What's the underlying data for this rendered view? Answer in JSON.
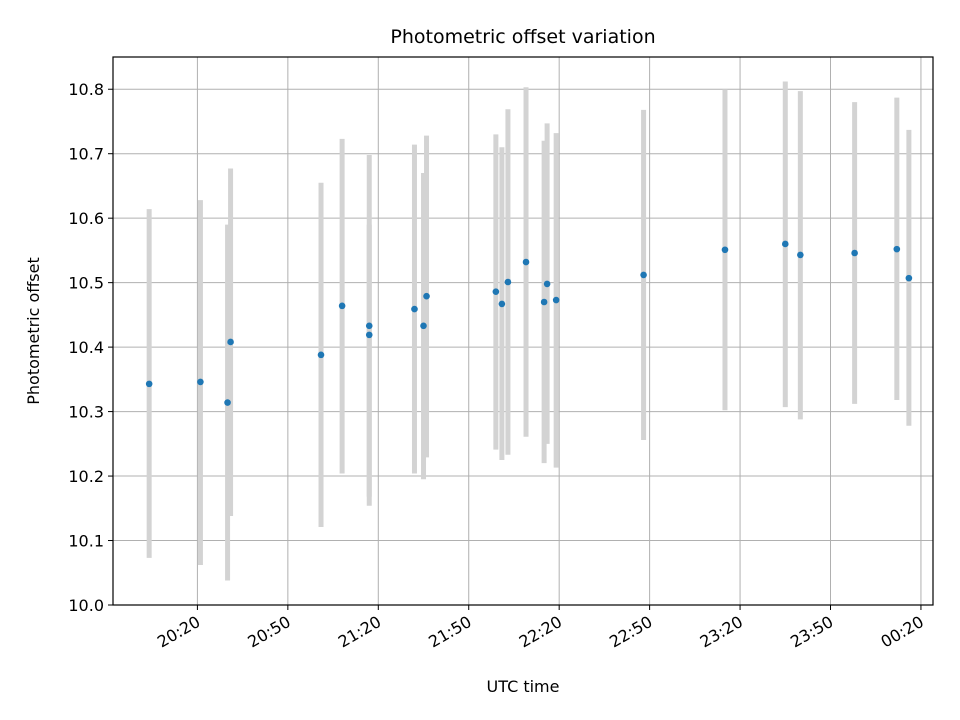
{
  "chart_data": {
    "type": "scatter",
    "title": "Photometric offset variation",
    "xlabel": "UTC time",
    "ylabel": "Photometric offset",
    "grid": true,
    "x_ticks": [
      "20:20",
      "20:50",
      "21:20",
      "21:50",
      "22:20",
      "22:50",
      "23:20",
      "23:50",
      "00:20"
    ],
    "xlim": [
      "19:52",
      "00:24"
    ],
    "ylim": [
      10.0,
      10.85
    ],
    "y_ticks": [
      10.0,
      10.1,
      10.2,
      10.3,
      10.4,
      10.5,
      10.6,
      10.7,
      10.8
    ],
    "colors": {
      "point": "#1f77b4",
      "errorbar": "#d3d3d3",
      "grid": "#b0b0b0"
    },
    "points": [
      {
        "x": "20:04",
        "y": 10.343,
        "low": 10.073,
        "high": 10.614
      },
      {
        "x": "20:21",
        "y": 10.346,
        "low": 10.062,
        "high": 10.628
      },
      {
        "x": "20:30",
        "y": 10.314,
        "low": 10.038,
        "high": 10.59
      },
      {
        "x": "20:31",
        "y": 10.408,
        "low": 10.138,
        "high": 10.677
      },
      {
        "x": "21:01",
        "y": 10.388,
        "low": 10.121,
        "high": 10.655
      },
      {
        "x": "21:08",
        "y": 10.464,
        "low": 10.204,
        "high": 10.723
      },
      {
        "x": "21:17",
        "y": 10.419,
        "low": 10.154,
        "high": 10.59
      },
      {
        "x": "21:17",
        "y": 10.433,
        "low": 10.168,
        "high": 10.698
      },
      {
        "x": "21:32",
        "y": 10.459,
        "low": 10.204,
        "high": 10.714
      },
      {
        "x": "21:35",
        "y": 10.433,
        "low": 10.195,
        "high": 10.67
      },
      {
        "x": "21:36",
        "y": 10.479,
        "low": 10.229,
        "high": 10.728
      },
      {
        "x": "21:59",
        "y": 10.486,
        "low": 10.241,
        "high": 10.73
      },
      {
        "x": "22:01",
        "y": 10.467,
        "low": 10.225,
        "high": 10.71
      },
      {
        "x": "22:03",
        "y": 10.501,
        "low": 10.233,
        "high": 10.769
      },
      {
        "x": "22:09",
        "y": 10.532,
        "low": 10.261,
        "high": 10.803
      },
      {
        "x": "22:15",
        "y": 10.47,
        "low": 10.22,
        "high": 10.72
      },
      {
        "x": "22:16",
        "y": 10.498,
        "low": 10.25,
        "high": 10.747
      },
      {
        "x": "22:19",
        "y": 10.473,
        "low": 10.213,
        "high": 10.732
      },
      {
        "x": "22:48",
        "y": 10.512,
        "low": 10.256,
        "high": 10.768
      },
      {
        "x": "23:15",
        "y": 10.551,
        "low": 10.302,
        "high": 10.8
      },
      {
        "x": "23:35",
        "y": 10.56,
        "low": 10.307,
        "high": 10.812
      },
      {
        "x": "23:40",
        "y": 10.543,
        "low": 10.288,
        "high": 10.797
      },
      {
        "x": "23:58",
        "y": 10.546,
        "low": 10.312,
        "high": 10.78
      },
      {
        "x": "00:12",
        "y": 10.552,
        "low": 10.318,
        "high": 10.787
      },
      {
        "x": "00:16",
        "y": 10.507,
        "low": 10.278,
        "high": 10.737
      }
    ]
  }
}
